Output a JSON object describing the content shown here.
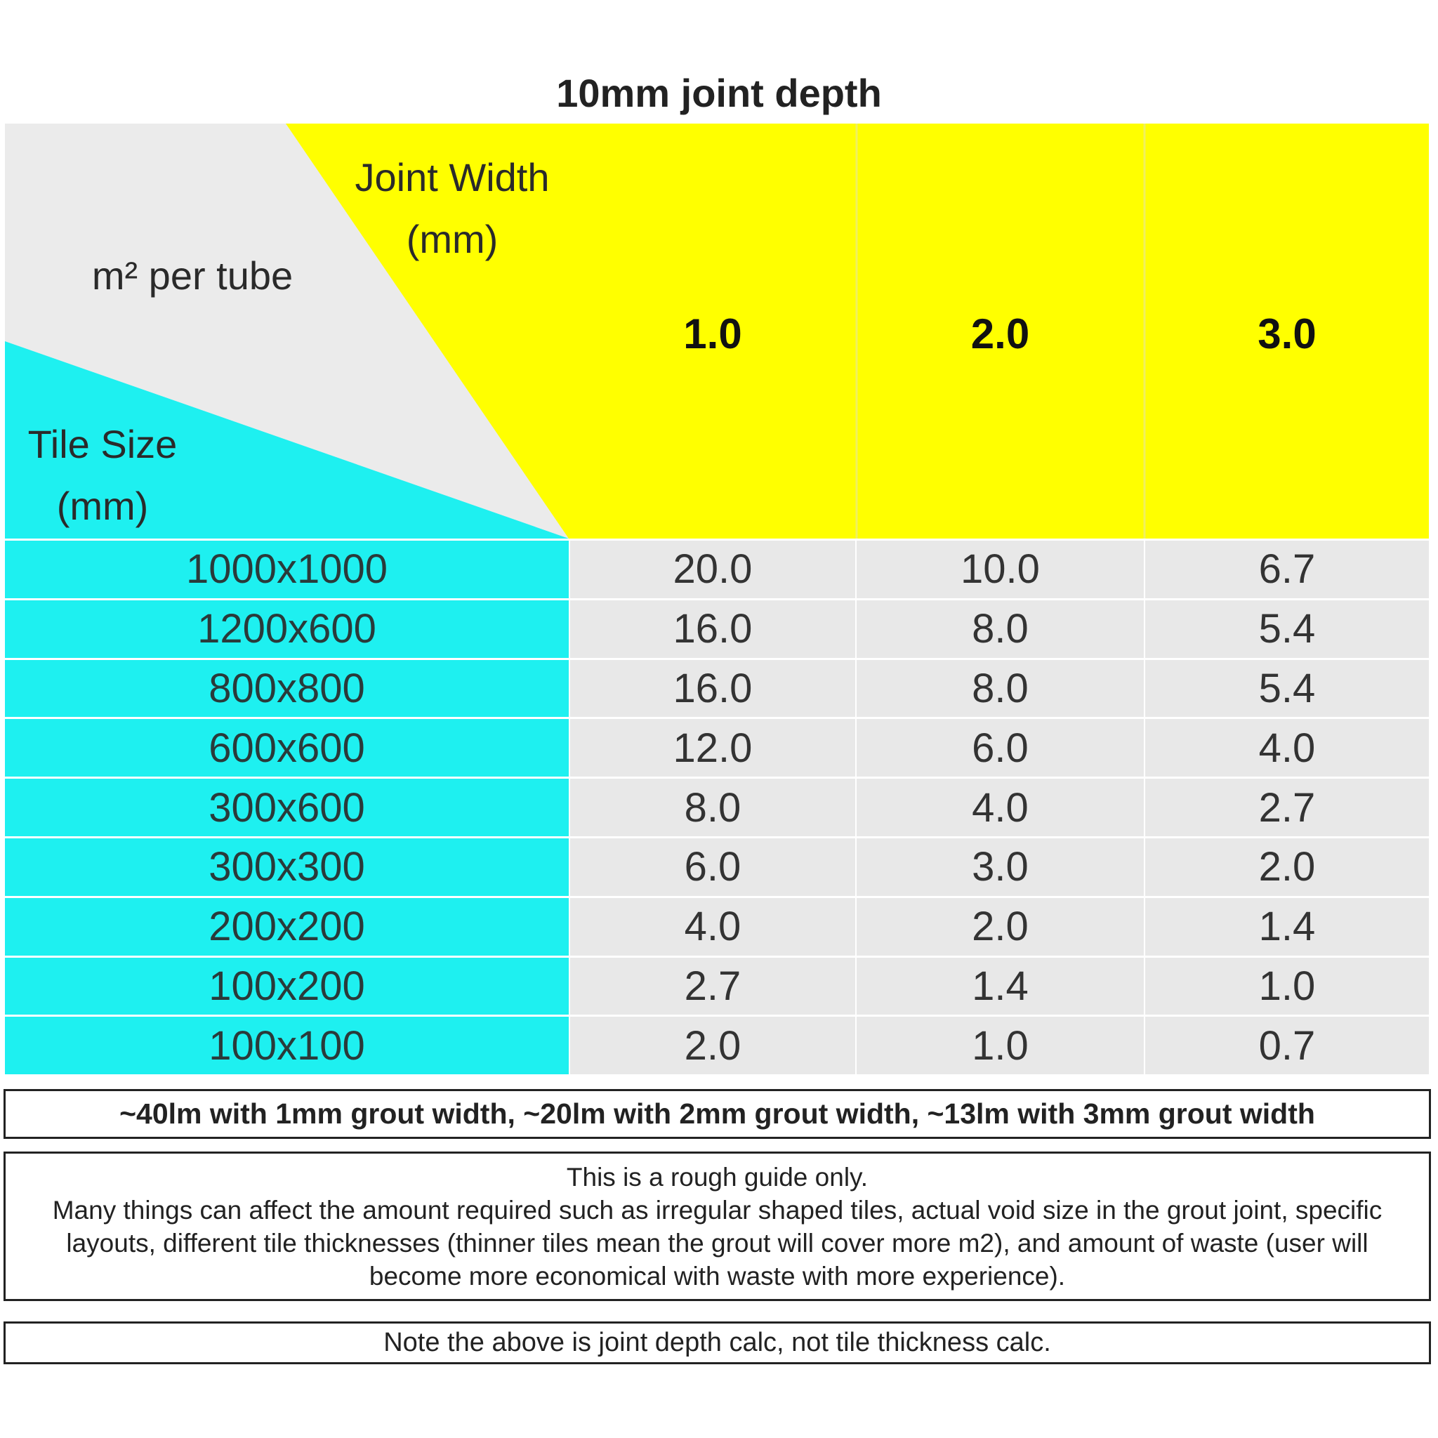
{
  "title": "10mm joint depth",
  "table": {
    "joint_width_label": [
      "Joint Width",
      "(mm)"
    ],
    "unit_label": "m² per tube",
    "tile_size_label": [
      "Tile Size",
      "(mm)"
    ],
    "columns": [
      "1.0",
      "2.0",
      "3.0"
    ],
    "rows": [
      [
        "1000x1000",
        "20.0",
        "10.0",
        "6.7"
      ],
      [
        "1200x600",
        "16.0",
        "8.0",
        "5.4"
      ],
      [
        "800x800",
        "16.0",
        "8.0",
        "5.4"
      ],
      [
        "600x600",
        "12.0",
        "6.0",
        "4.0"
      ],
      [
        "300x600",
        "8.0",
        "4.0",
        "2.7"
      ],
      [
        "300x300",
        "6.0",
        "3.0",
        "2.0"
      ],
      [
        "200x200",
        "4.0",
        "2.0",
        "1.4"
      ],
      [
        "100x200",
        "2.7",
        "1.4",
        "1.0"
      ],
      [
        "100x100",
        "2.0",
        "1.0",
        "0.7"
      ]
    ]
  },
  "notes": {
    "coverage": "~40lm with 1mm grout width, ~20lm with 2mm grout width, ~13lm with 3mm grout width",
    "guide": [
      "This is a rough guide only.",
      "Many things can affect the amount required such as irregular shaped tiles, actual void size in the grout joint, specific layouts, different tile thicknesses (thinner tiles mean the grout will cover more m2), and amount of waste (user will become more economical with waste with more experience)."
    ],
    "depth_note": "Note the above is joint depth calc, not tile thickness calc."
  }
}
